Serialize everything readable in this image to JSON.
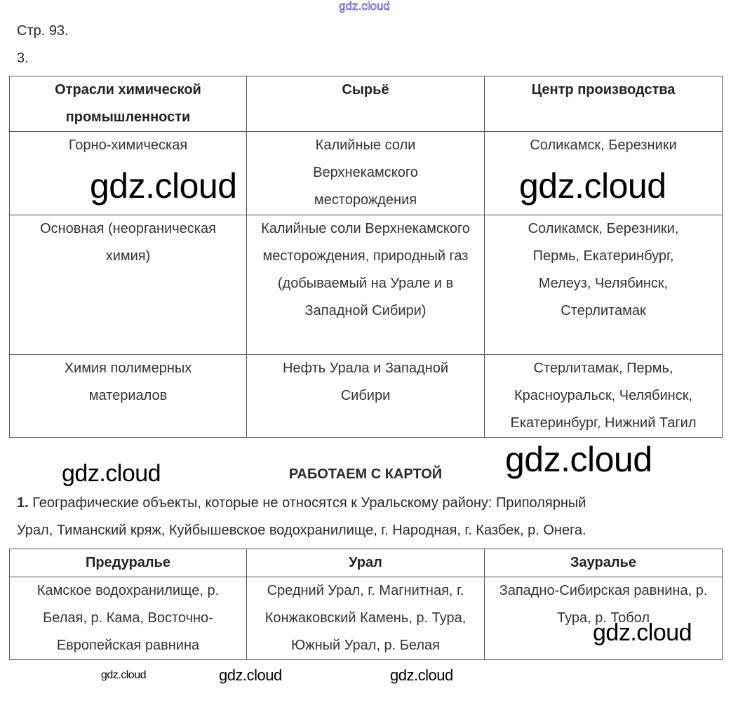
{
  "watermark": "gdz.cloud",
  "page_ref": "Стр. 93.",
  "task_number": "3.",
  "table1": {
    "headers": [
      "Отрасли химической промышленности",
      "Сырьё",
      "Центр производства"
    ],
    "rows": [
      [
        "Горно-химическая",
        "Калийные соли Верхнекамского месторождения",
        "Соликамск, Березники"
      ],
      [
        "Основная (неорганическая химия)",
        "Калийные соли Верхнекамского месторождения, природный газ (добываемый на Урале и в Западной Сибири)",
        "Соликамск, Березники, Пермь, Екатеринбург, Мелеуз, Челябинск, Стерлитамак"
      ],
      [
        "Химия полимерных материалов",
        "Нефть Урала и Западной Сибири",
        "Стерлитамак, Пермь, Красноуральск, Челябинск, Екатеринбург, Нижний Тагил"
      ]
    ]
  },
  "section_heading": "РАБОТАЕМ С КАРТОЙ",
  "task1": {
    "number": "1.",
    "text_line1": "Географические объекты, которые не относятся к Уральскому району: Приполярный",
    "text_line2": "Урал, Тиманский кряж, Куйбышевское водохранилище, г. Народная, г. Казбек, р. Онега."
  },
  "table2": {
    "headers": [
      "Предуралье",
      "Урал",
      "Зауралье"
    ],
    "rows": [
      [
        "Камское водохранилище, р. Белая, р. Кама, Восточно-Европейская равнина",
        "Средний Урал, г. Магнитная, г. Конжаковский Камень, р. Тура, Южный Урал, р. Белая",
        "Западно-Сибирская равнина, р. Тура, р. Тобол"
      ]
    ]
  }
}
